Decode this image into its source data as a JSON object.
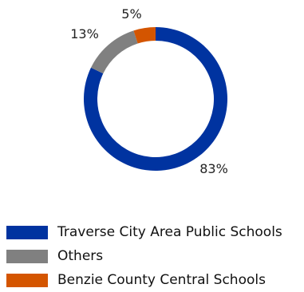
{
  "chart_data": {
    "type": "pie",
    "style": "donut",
    "slices": [
      {
        "name": "Traverse City Area Public Schools",
        "value": 83,
        "label": "83%",
        "color": "#0033A0"
      },
      {
        "name": "Others",
        "value": 13,
        "label": "13%",
        "color": "#808080"
      },
      {
        "name": "Benzie County Central Schools",
        "value": 5,
        "label": "5%",
        "color": "#D45500"
      }
    ],
    "legend_position": "bottom-left"
  }
}
